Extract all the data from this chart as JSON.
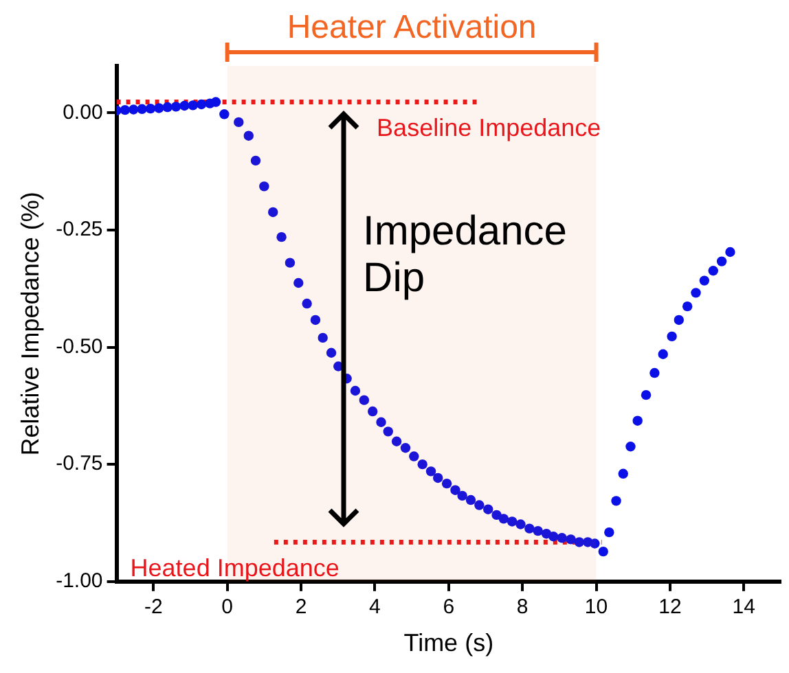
{
  "chart_data": {
    "type": "scatter",
    "xlabel": "Time (s)",
    "ylabel": "Relative Impedance (%)",
    "xlim": [
      -3,
      15
    ],
    "xticks": [
      -2,
      0,
      2,
      4,
      6,
      8,
      10,
      12,
      14
    ],
    "ylim": [
      -1,
      0.1
    ],
    "yticks": [
      {
        "value": 0,
        "label": "0.00"
      },
      {
        "value": -0.25,
        "label": "-0.25"
      },
      {
        "value": -0.5,
        "label": "-0.50"
      },
      {
        "value": -0.75,
        "label": "-0.75"
      },
      {
        "value": -1,
        "label": "-1.00"
      }
    ],
    "grid": false,
    "legend": false,
    "marker": "circle",
    "series": [
      {
        "color": "#0b10e6",
        "x": [
          -3,
          -2.77,
          -2.54,
          -2.31,
          -2.08,
          -1.85,
          -1.62,
          -1.39,
          -1.16,
          -0.93,
          -0.7,
          -0.47,
          -0.31,
          -0.08,
          0.31,
          0.58,
          0.77,
          1,
          1.24,
          1.47,
          1.7,
          1.93,
          2.16,
          2.39,
          2.59,
          2.82,
          3.01,
          3.24,
          3.47,
          3.71,
          3.94,
          4.17,
          4.36,
          4.59,
          4.83,
          5.06,
          5.29,
          5.52,
          5.71,
          5.95,
          6.18,
          6.37,
          6.6,
          6.83,
          7.07,
          7.3,
          7.49,
          7.72,
          7.95,
          8.19,
          8.42,
          8.65,
          8.84,
          9.07,
          9.31,
          9.54,
          9.77,
          9.96,
          10.19,
          10.35,
          10.54,
          10.73,
          10.93,
          11.12,
          11.35,
          11.58,
          11.81,
          12.05,
          12.24,
          12.47,
          12.7,
          12.93,
          13.17,
          13.4,
          13.63
        ],
        "values": [
          0.005,
          0.006,
          0.007,
          0.008,
          0.009,
          0.01,
          0.012,
          0.013,
          0.015,
          0.016,
          0.018,
          0.02,
          0.023,
          -0.003,
          -0.02,
          -0.049,
          -0.102,
          -0.157,
          -0.212,
          -0.265,
          -0.32,
          -0.363,
          -0.407,
          -0.442,
          -0.48,
          -0.512,
          -0.541,
          -0.567,
          -0.593,
          -0.613,
          -0.637,
          -0.66,
          -0.68,
          -0.701,
          -0.715,
          -0.733,
          -0.75,
          -0.765,
          -0.779,
          -0.791,
          -0.805,
          -0.817,
          -0.826,
          -0.837,
          -0.846,
          -0.858,
          -0.866,
          -0.872,
          -0.878,
          -0.887,
          -0.892,
          -0.898,
          -0.904,
          -0.907,
          -0.91,
          -0.916,
          -0.916,
          -0.919,
          -0.936,
          -0.895,
          -0.828,
          -0.77,
          -0.712,
          -0.657,
          -0.602,
          -0.555,
          -0.515,
          -0.477,
          -0.442,
          -0.413,
          -0.384,
          -0.358,
          -0.337,
          -0.317,
          -0.297
        ]
      },
      {
        "type": "line",
        "color": "#e8161b",
        "line_style": "dotted",
        "marker": "none",
        "x": [
          -3,
          6.87
        ],
        "values": [
          0.023,
          0.023
        ]
      },
      {
        "type": "line",
        "color": "#e8161b",
        "line_style": "dotted",
        "marker": "none",
        "x": [
          1.27,
          10.15
        ],
        "values": [
          -0.916,
          -0.916
        ]
      }
    ],
    "bands": [
      {
        "axis": "x",
        "from": 0,
        "to": 10,
        "label": "Heater Activation",
        "color": "#f26522"
      }
    ],
    "annotations": [
      "Baseline Impedance",
      "Heated Impedance",
      "Impedance\nDip"
    ]
  }
}
